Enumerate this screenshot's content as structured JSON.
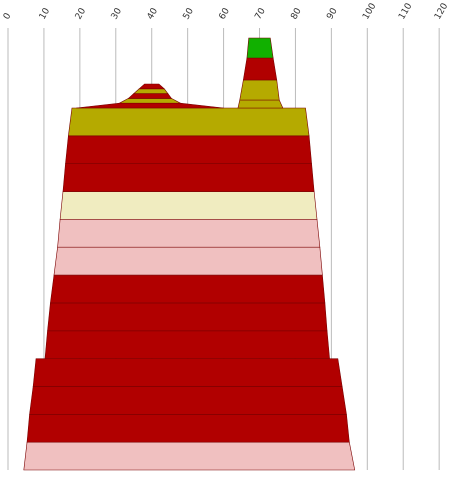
{
  "chart_data": {
    "type": "area",
    "title": "",
    "xlabel": "",
    "ylabel": "",
    "xlim": [
      0,
      120
    ],
    "x_ticks": [
      "0",
      "10",
      "20",
      "30",
      "40",
      "50",
      "60",
      "70",
      "80",
      "90",
      "100",
      "110",
      "120"
    ],
    "grid": true,
    "colors": {
      "dark_red": "#b10000",
      "olive": "#b5aa00",
      "green": "#11b000",
      "cream": "#f0ecc0",
      "pink": "#f0c0c0"
    },
    "main_body": [
      {
        "color": "pink",
        "bottom": [
          4.4,
          96.5
        ],
        "top": [
          5.3,
          95.0
        ]
      },
      {
        "color": "dark_red",
        "bottom": [
          5.3,
          95.0
        ],
        "top": [
          6.0,
          94.2
        ]
      },
      {
        "color": "dark_red",
        "bottom": [
          6.0,
          94.2
        ],
        "top": [
          7.0,
          93.0
        ]
      },
      {
        "color": "dark_red",
        "bottom": [
          7.0,
          93.0
        ],
        "top": [
          7.8,
          91.8
        ]
      },
      {
        "color": "dark_red",
        "bottom": [
          10.3,
          89.5
        ],
        "top": [
          11.0,
          88.8
        ]
      },
      {
        "color": "dark_red",
        "bottom": [
          11.0,
          88.8
        ],
        "top": [
          11.8,
          88.2
        ]
      },
      {
        "color": "dark_red",
        "bottom": [
          11.8,
          88.2
        ],
        "top": [
          12.8,
          87.5
        ]
      },
      {
        "color": "pink",
        "bottom": [
          12.8,
          87.5
        ],
        "top": [
          13.8,
          86.8
        ]
      },
      {
        "color": "pink",
        "bottom": [
          13.8,
          86.8
        ],
        "top": [
          14.5,
          86.0
        ]
      },
      {
        "color": "cream",
        "bottom": [
          14.5,
          86.0
        ],
        "top": [
          15.3,
          85.2
        ]
      },
      {
        "color": "dark_red",
        "bottom": [
          15.3,
          85.2
        ],
        "top": [
          16.0,
          84.5
        ]
      },
      {
        "color": "dark_red",
        "bottom": [
          16.0,
          84.5
        ],
        "top": [
          16.8,
          83.8
        ]
      },
      {
        "color": "olive",
        "bottom": [
          16.8,
          83.8
        ],
        "top": [
          17.8,
          82.8
        ]
      }
    ],
    "step_at": {
      "from": [
        7.8,
        91.8
      ],
      "to": [
        10.3,
        89.5
      ]
    },
    "hill": {
      "base": [
        19.0,
        60.0
      ],
      "layers": [
        {
          "color": "dark_red",
          "top": [
            31.0,
            48.0
          ]
        },
        {
          "color": "olive",
          "top": [
            33.5,
            45.5
          ]
        },
        {
          "color": "dark_red",
          "top": [
            35.0,
            44.5
          ]
        },
        {
          "color": "olive",
          "top": [
            36.5,
            43.5
          ]
        },
        {
          "color": "dark_red",
          "top": [
            38.0,
            42.0
          ]
        }
      ]
    },
    "spike": {
      "layers": [
        {
          "color": "olive",
          "bottom": [
            64.0,
            76.5
          ],
          "top": [
            64.5,
            75.5
          ]
        },
        {
          "color": "olive",
          "bottom": [
            64.5,
            75.5
          ],
          "top": [
            65.5,
            74.8
          ]
        },
        {
          "color": "dark_red",
          "bottom": [
            65.5,
            74.8
          ],
          "top": [
            66.5,
            73.8
          ]
        },
        {
          "color": "green",
          "bottom": [
            66.5,
            73.8
          ],
          "top": [
            67.0,
            73.0
          ]
        }
      ]
    }
  }
}
